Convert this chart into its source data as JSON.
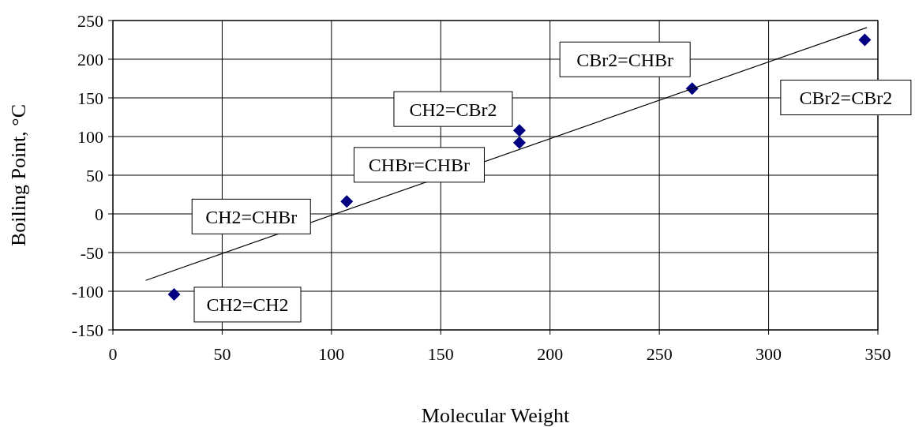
{
  "chart_data": {
    "type": "scatter",
    "xlabel": "Molecular Weight",
    "ylabel": "Boiling Point, °C",
    "xlim": [
      0,
      350
    ],
    "xticks": [
      0,
      50,
      100,
      150,
      200,
      250,
      300,
      350
    ],
    "ylim": [
      -150,
      250
    ],
    "yticks": [
      -150,
      -100,
      -50,
      0,
      50,
      100,
      150,
      200,
      250
    ],
    "grid": true,
    "series": [
      {
        "marker": "diamond",
        "color": "#000080",
        "x": [
          28,
          107,
          186,
          186,
          265,
          344
        ],
        "values": [
          -104,
          16,
          108,
          92,
          162,
          225
        ]
      },
      {
        "type": "line",
        "color": "#000000",
        "x": [
          15,
          345
        ],
        "values": [
          -86,
          241
        ]
      }
    ],
    "annotations": [
      {
        "text": "CH2=CH2",
        "x": 28,
        "y": -104
      },
      {
        "text": "CH2=CHBr",
        "x": 107,
        "y": 16
      },
      {
        "text": "CHBr=CHBr",
        "x": 186,
        "y": 92
      },
      {
        "text": "CH2=CBr2",
        "x": 186,
        "y": 108
      },
      {
        "text": "CBr2=CHBr",
        "x": 265,
        "y": 162
      },
      {
        "text": "CBr2=CBr2",
        "x": 344,
        "y": 225
      }
    ]
  }
}
